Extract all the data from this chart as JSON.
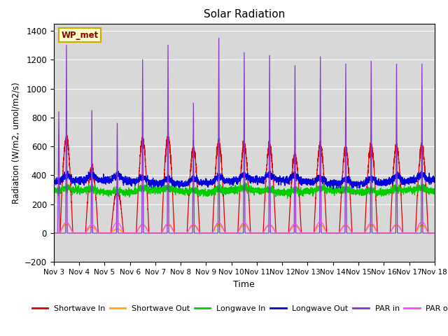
{
  "title": "Solar Radiation",
  "ylabel": "Radiation (W/m2, umol/m2/s)",
  "xlabel": "Time",
  "station_label": "WP_met",
  "ylim": [
    -200,
    1450
  ],
  "yticks": [
    -200,
    0,
    200,
    400,
    600,
    800,
    1000,
    1200,
    1400
  ],
  "x_tick_labels": [
    "Nov 3",
    "Nov 4",
    "Nov 5",
    "Nov 6",
    "Nov 7",
    "Nov 8",
    "Nov 9",
    "Nov 10",
    "Nov 11",
    "Nov 12",
    "Nov 13",
    "Nov 14",
    "Nov 15",
    "Nov 16",
    "Nov 17",
    "Nov 18"
  ],
  "colors": {
    "shortwave_in": "#dd0000",
    "shortwave_out": "#ffaa00",
    "longwave_in": "#00cc00",
    "longwave_out": "#0000dd",
    "par_in": "#8833cc",
    "par_out": "#ff44ff"
  },
  "background_color": "#d8d8d8",
  "legend_labels": [
    "Shortwave In",
    "Shortwave Out",
    "Longwave In",
    "Longwave Out",
    "PAR in",
    "PAR out"
  ],
  "n_days": 15,
  "points_per_day": 288
}
